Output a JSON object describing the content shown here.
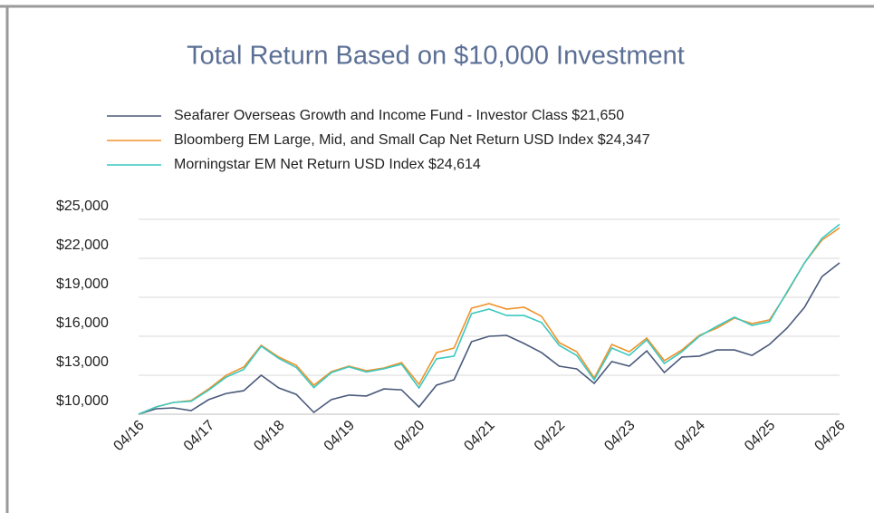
{
  "chart_data": {
    "type": "line",
    "title": "Total Return Based on $10,000 Investment",
    "categories": [
      "04/16",
      null,
      null,
      null,
      "04/17",
      null,
      null,
      null,
      "04/18",
      null,
      null,
      null,
      "04/19",
      null,
      null,
      null,
      "04/20",
      null,
      null,
      null,
      "04/21",
      null,
      null,
      null,
      "04/22",
      null,
      null,
      null,
      "04/23",
      null,
      null,
      null,
      "04/24",
      null,
      null,
      null,
      "04/25",
      null,
      null,
      null,
      "04/26"
    ],
    "series": [
      {
        "name": "Seafarer Overseas Growth and Income Fund - Investor Class $21,650",
        "color": "#4a5a7a",
        "values": [
          10000,
          10420,
          10490,
          10280,
          11120,
          11600,
          11810,
          13000,
          12020,
          11530,
          10140,
          11120,
          11470,
          11400,
          11950,
          11880,
          10560,
          12230,
          12650,
          15580,
          16000,
          16070,
          15440,
          14740,
          13700,
          13490,
          12370,
          14050,
          13700,
          14880,
          13210,
          14400,
          14470,
          14950,
          14950,
          14530,
          15370,
          16630,
          18230,
          20600,
          21650
        ]
      },
      {
        "name": "Bloomberg EM Large, Mid, and Small Cap Net Return USD Index $24,347",
        "color": "#f0932b",
        "values": [
          10000,
          10560,
          10910,
          11050,
          11950,
          13000,
          13630,
          15300,
          14400,
          13770,
          12230,
          13280,
          13700,
          13350,
          13560,
          13980,
          12300,
          14740,
          15090,
          18160,
          18510,
          18090,
          18230,
          17530,
          15510,
          14810,
          12790,
          15370,
          14810,
          15860,
          14120,
          14950,
          16070,
          16630,
          17400,
          16980,
          17260,
          19350,
          21650,
          23400,
          24347
        ]
      },
      {
        "name": "Morningstar EM Net Return USD Index $24,614",
        "color": "#3cc8c0",
        "values": [
          10000,
          10560,
          10910,
          11000,
          11850,
          12850,
          13450,
          15230,
          14300,
          13600,
          12050,
          13200,
          13650,
          13250,
          13500,
          13850,
          12020,
          14260,
          14470,
          17740,
          18090,
          17600,
          17600,
          17050,
          15300,
          14530,
          12650,
          15090,
          14530,
          15720,
          13910,
          14810,
          16000,
          16770,
          17470,
          16840,
          17120,
          19420,
          21650,
          23540,
          24614
        ]
      }
    ],
    "ylim": [
      10000,
      25000
    ],
    "yticks": [
      {
        "value": 10000,
        "label": "$10,000"
      },
      {
        "value": 13000,
        "label": "$13,000"
      },
      {
        "value": 16000,
        "label": "$16,000"
      },
      {
        "value": 19000,
        "label": "$19,000"
      },
      {
        "value": 22000,
        "label": "$22,000"
      },
      {
        "value": 25000,
        "label": "$25,000"
      }
    ],
    "grid": true
  }
}
